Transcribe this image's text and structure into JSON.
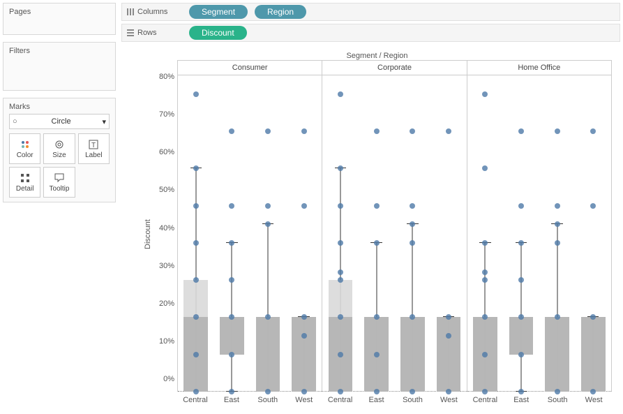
{
  "panels": {
    "pages_title": "Pages",
    "filters_title": "Filters",
    "marks_title": "Marks",
    "mark_type": "Circle",
    "mark_buttons": [
      "Color",
      "Size",
      "Label",
      "Detail",
      "Tooltip"
    ]
  },
  "shelves": {
    "columns_label": "Columns",
    "rows_label": "Rows",
    "column_pills": [
      "Segment",
      "Region"
    ],
    "row_pills": [
      "Discount"
    ],
    "pill_blue_color": "#4e98ab",
    "pill_green_color": "#2ab38a"
  },
  "chart": {
    "title": "Segment  /  Region",
    "y_axis_label": "Discount",
    "y_ticks": [
      "80%",
      "70%",
      "60%",
      "50%",
      "40%",
      "30%",
      "20%",
      "10%",
      "0%"
    ],
    "ylim": [
      0,
      85
    ],
    "segments": [
      "Consumer",
      "Corporate",
      "Home Office"
    ],
    "regions": [
      "Central",
      "East",
      "South",
      "West"
    ],
    "dot_color": "#4e79a7",
    "dot_radius": 4,
    "box_dark_color": "#b3b3b3",
    "box_light_color": "#d9d9d9",
    "whisker_color": "#333333",
    "background_color": "#ffffff",
    "data": {
      "Consumer": {
        "Central": {
          "box": {
            "lw": 0,
            "q1": 0,
            "med": 20,
            "q3": 30,
            "uw": 60
          },
          "points": [
            0,
            10,
            20,
            30,
            40,
            50,
            60,
            80
          ]
        },
        "East": {
          "box": {
            "lw": 0,
            "q1": 10,
            "med": 20,
            "q3": 20,
            "uw": 40
          },
          "points": [
            0,
            10,
            20,
            30,
            40,
            50,
            70
          ]
        },
        "South": {
          "box": {
            "lw": 0,
            "q1": 0,
            "med": 20,
            "q3": 20,
            "uw": 45
          },
          "points": [
            0,
            20,
            45,
            50,
            70
          ]
        },
        "West": {
          "box": {
            "lw": 0,
            "q1": 0,
            "med": 20,
            "q3": 20,
            "uw": 20
          },
          "points": [
            0,
            15,
            20,
            50,
            70
          ]
        }
      },
      "Corporate": {
        "Central": {
          "box": {
            "lw": 0,
            "q1": 0,
            "med": 20,
            "q3": 30,
            "uw": 60
          },
          "points": [
            0,
            10,
            20,
            30,
            32,
            40,
            50,
            60,
            80
          ]
        },
        "East": {
          "box": {
            "lw": 0,
            "q1": 0,
            "med": 20,
            "q3": 20,
            "uw": 40
          },
          "points": [
            0,
            10,
            20,
            40,
            50,
            70
          ]
        },
        "South": {
          "box": {
            "lw": 0,
            "q1": 0,
            "med": 20,
            "q3": 20,
            "uw": 45
          },
          "points": [
            0,
            20,
            40,
            45,
            50,
            70
          ]
        },
        "West": {
          "box": {
            "lw": 0,
            "q1": 0,
            "med": 20,
            "q3": 20,
            "uw": 20
          },
          "points": [
            0,
            15,
            20,
            70
          ]
        }
      },
      "Home Office": {
        "Central": {
          "box": {
            "lw": 0,
            "q1": 0,
            "med": 20,
            "q3": 20,
            "uw": 40
          },
          "points": [
            0,
            10,
            20,
            30,
            32,
            40,
            60,
            80
          ]
        },
        "East": {
          "box": {
            "lw": 0,
            "q1": 10,
            "med": 20,
            "q3": 20,
            "uw": 40
          },
          "points": [
            0,
            10,
            20,
            30,
            40,
            50,
            70
          ]
        },
        "South": {
          "box": {
            "lw": 0,
            "q1": 0,
            "med": 20,
            "q3": 20,
            "uw": 45
          },
          "points": [
            0,
            20,
            40,
            45,
            50,
            70
          ]
        },
        "West": {
          "box": {
            "lw": 0,
            "q1": 0,
            "med": 20,
            "q3": 20,
            "uw": 20
          },
          "points": [
            0,
            20,
            50,
            70
          ]
        }
      }
    }
  }
}
